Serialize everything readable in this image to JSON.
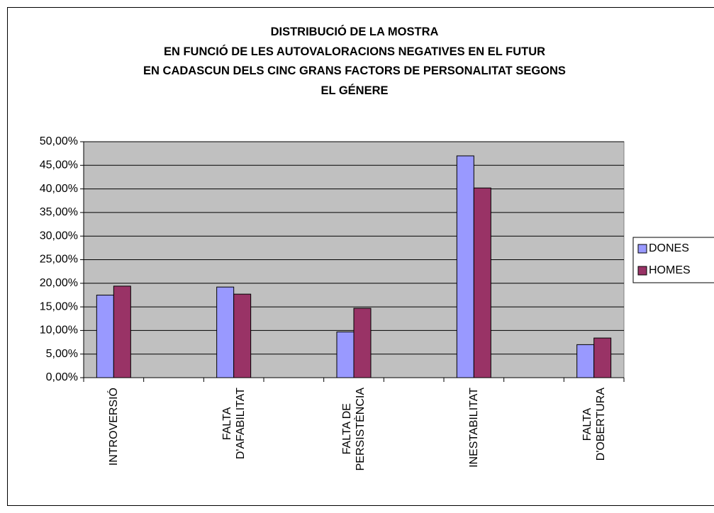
{
  "chart_data": {
    "type": "bar",
    "title": "DISTRIBUCIÓ DE LA MOSTRA\nEN FUNCIÓ DE LES AUTOVALORACIONS NEGATIVES EN EL FUTUR\nEN CADASCUN DELS CINC GRANS FACTORS DE PERSONALITAT SEGONS\nEL GÉNERE",
    "categories": [
      "INTROVERSIÓ",
      null,
      "FALTA\nD'AFABILITAT",
      null,
      "FALTA DE\nPERSISTÈNCIA",
      null,
      "INESTABILITAT",
      null,
      "FALTA\nD'OBERTURA"
    ],
    "series": [
      {
        "name": "DONES",
        "color": "#9999ff",
        "values": [
          17.5,
          null,
          19.2,
          null,
          9.7,
          null,
          47.0,
          null,
          7.0
        ]
      },
      {
        "name": "HOMES",
        "color": "#993366",
        "values": [
          19.4,
          null,
          17.7,
          null,
          14.7,
          null,
          40.2,
          null,
          8.4
        ]
      }
    ],
    "ylim": [
      0,
      50
    ],
    "yticks": [
      {
        "value": 0,
        "label": "0,00%"
      },
      {
        "value": 5,
        "label": "5,00%"
      },
      {
        "value": 10,
        "label": "10,00%"
      },
      {
        "value": 15,
        "label": "15,00%"
      },
      {
        "value": 20,
        "label": "20,00%"
      },
      {
        "value": 25,
        "label": "25,00%"
      },
      {
        "value": 30,
        "label": "30,00%"
      },
      {
        "value": 35,
        "label": "35,00%"
      },
      {
        "value": 40,
        "label": "40,00%"
      },
      {
        "value": 45,
        "label": "45,00%"
      },
      {
        "value": 50,
        "label": "50,00%"
      }
    ],
    "grid": true,
    "legend": "right"
  }
}
